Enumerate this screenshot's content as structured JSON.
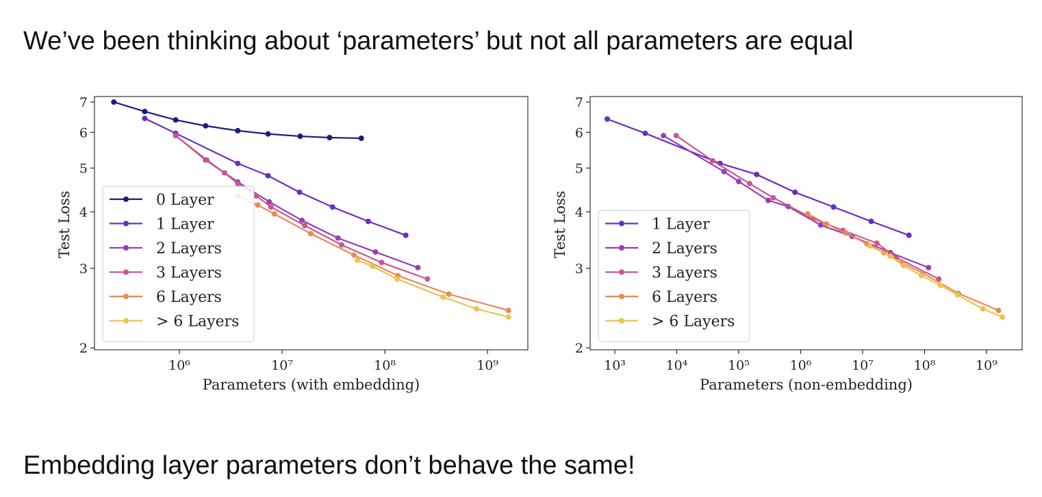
{
  "heading": "We’ve been thinking about ‘parameters’ but not all parameters are equal",
  "caption": "Embedding layer parameters don’t behave the same!",
  "chart_data": [
    {
      "type": "line",
      "xlabel": "Parameters (with embedding)",
      "ylabel": "Test Loss",
      "xscale": "log",
      "yscale": "log",
      "xlim": [
        149000,
        2470000000
      ],
      "ylim": [
        1.98,
        7.2
      ],
      "xticks": [
        {
          "value": 1000000,
          "label": "10⁶"
        },
        {
          "value": 10000000,
          "label": "10⁷"
        },
        {
          "value": 100000000,
          "label": "10⁸"
        },
        {
          "value": 1000000000,
          "label": "10⁹"
        }
      ],
      "yticks": [
        2,
        3,
        4,
        5,
        6,
        7
      ],
      "legend": "lower left",
      "series": [
        {
          "name": "0 Layer",
          "color": "#1b1a80",
          "x": [
            230000,
            460000,
            920000,
            1800000,
            3700000,
            7300000,
            15000000,
            29000000,
            59000000
          ],
          "values": [
            7.0,
            6.67,
            6.39,
            6.2,
            6.05,
            5.95,
            5.88,
            5.84,
            5.82
          ]
        },
        {
          "name": "1 Layer",
          "color": "#6a2dbf",
          "x": [
            460000,
            920000,
            3700000,
            7300000,
            14800000,
            31000000,
            69000000,
            160000000
          ],
          "values": [
            6.44,
            5.97,
            5.12,
            4.81,
            4.42,
            4.1,
            3.81,
            3.55
          ]
        },
        {
          "name": "2 Layers",
          "color": "#9a3db5",
          "x": [
            920000,
            1800000,
            3700000,
            7500000,
            15600000,
            35000000,
            81000000,
            210000000
          ],
          "values": [
            5.9,
            5.21,
            4.66,
            4.21,
            3.83,
            3.5,
            3.26,
            3.01
          ]
        },
        {
          "name": "3 Layers",
          "color": "#c95890",
          "x": [
            920000,
            1850000,
            2750000,
            3700000,
            5600000,
            7800000,
            16600000,
            38000000,
            93000000,
            260000000
          ],
          "values": [
            5.9,
            5.21,
            4.88,
            4.62,
            4.34,
            4.1,
            3.73,
            3.38,
            3.09,
            2.84
          ]
        },
        {
          "name": "6 Layers",
          "color": "#e88a54",
          "x": [
            3700000,
            5800000,
            8400000,
            19000000,
            50000000,
            134000000,
            420000000,
            1600000000
          ],
          "values": [
            4.34,
            4.14,
            3.96,
            3.58,
            3.21,
            2.89,
            2.63,
            2.42
          ]
        },
        {
          "name": "> 6 Layers",
          "color": "#eec24f",
          "x": [
            54000000,
            76000000,
            132000000,
            370000000,
            780000000,
            1600000000
          ],
          "values": [
            3.13,
            3.03,
            2.84,
            2.59,
            2.44,
            2.34
          ]
        }
      ]
    },
    {
      "type": "line",
      "xlabel": "Parameters (non-embedding)",
      "ylabel": "Test Loss",
      "xscale": "log",
      "yscale": "log",
      "xlim": [
        400,
        3760000000
      ],
      "ylim": [
        1.98,
        7.2
      ],
      "xticks": [
        {
          "value": 1000,
          "label": "10³"
        },
        {
          "value": 10000,
          "label": "10⁴"
        },
        {
          "value": 100000,
          "label": "10⁵"
        },
        {
          "value": 1000000,
          "label": "10⁶"
        },
        {
          "value": 10000000,
          "label": "10⁷"
        },
        {
          "value": 100000000,
          "label": "10⁸"
        },
        {
          "value": 1000000000,
          "label": "10⁹"
        }
      ],
      "yticks": [
        2,
        3,
        4,
        5,
        6,
        7
      ],
      "legend": "lower left",
      "series": [
        {
          "name": "1 Layer",
          "color": "#6a2dbf",
          "x": [
            755,
            3100,
            50000,
            195000,
            810000,
            3400000,
            13800000,
            56000000
          ],
          "values": [
            6.42,
            5.97,
            5.12,
            4.84,
            4.42,
            4.1,
            3.81,
            3.55
          ]
        },
        {
          "name": "2 Layers",
          "color": "#9a3db5",
          "x": [
            6100,
            58000,
            100000,
            300000,
            630000,
            2100000,
            6800000,
            28000000,
            116000000
          ],
          "values": [
            5.9,
            4.91,
            4.67,
            4.24,
            4.11,
            3.74,
            3.53,
            3.25,
            3.01
          ]
        },
        {
          "name": "3 Layers",
          "color": "#c95890",
          "x": [
            9800,
            38000,
            150000,
            360000,
            1600000,
            4800000,
            17000000,
            35000000,
            170000000
          ],
          "values": [
            5.9,
            5.19,
            4.62,
            4.3,
            3.86,
            3.64,
            3.41,
            3.17,
            2.84
          ]
        },
        {
          "name": "6 Layers",
          "color": "#e88a54",
          "x": [
            1300000,
            2600000,
            5400000,
            11700000,
            22000000,
            44000000,
            92000000,
            350000000,
            1560000000
          ],
          "values": [
            3.96,
            3.76,
            3.59,
            3.4,
            3.25,
            3.08,
            2.93,
            2.64,
            2.42
          ]
        },
        {
          "name": "> 6 Layers",
          "color": "#eec24f",
          "x": [
            13000000,
            28000000,
            46000000,
            89000000,
            180000000,
            340000000,
            870000000,
            1800000000
          ],
          "values": [
            3.36,
            3.19,
            3.04,
            2.89,
            2.75,
            2.62,
            2.44,
            2.34
          ]
        }
      ]
    }
  ]
}
